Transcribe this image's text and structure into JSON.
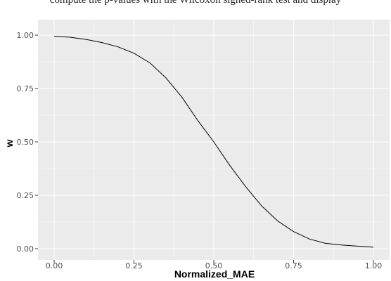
{
  "caption_fragment": "compute the p-values with the Wilcoxon signed-rank test and display",
  "chart_data": {
    "type": "line",
    "title": "",
    "xlabel": "Normalized_MAE",
    "ylabel": "w",
    "xlim": [
      0,
      1
    ],
    "ylim": [
      0,
      1
    ],
    "x_ticks": [
      "0.00",
      "0.25",
      "0.50",
      "0.75",
      "1.00"
    ],
    "y_ticks": [
      "0.00",
      "0.25",
      "0.50",
      "0.75",
      "1.00"
    ],
    "grid": true,
    "background": "#ebebeb",
    "gridline_color": "#ffffff",
    "line_color": "#000000",
    "series": [
      {
        "x": [
          0.0,
          0.05,
          0.1,
          0.15,
          0.2,
          0.25,
          0.3,
          0.35,
          0.4,
          0.45,
          0.5,
          0.55,
          0.6,
          0.65,
          0.7,
          0.75,
          0.8,
          0.85,
          0.9,
          0.95,
          1.0
        ],
        "y": [
          0.995,
          0.99,
          0.98,
          0.965,
          0.945,
          0.915,
          0.87,
          0.8,
          0.71,
          0.6,
          0.5,
          0.39,
          0.29,
          0.2,
          0.13,
          0.08,
          0.045,
          0.025,
          0.017,
          0.012,
          0.007
        ]
      }
    ]
  }
}
